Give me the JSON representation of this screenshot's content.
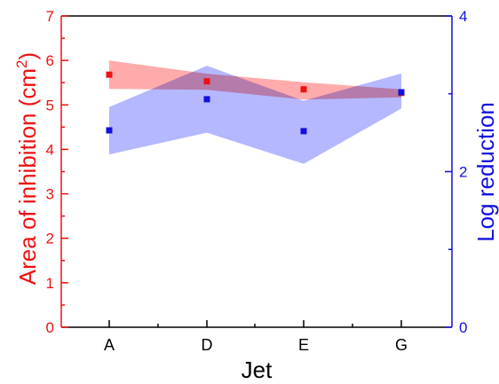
{
  "chart_data": {
    "type": "scatter",
    "categories": [
      "A",
      "D",
      "E",
      "G"
    ],
    "xlabel": "Jet",
    "ylabel_left": {
      "prefix": "Area of inhibition (cm",
      "sup": "2",
      "suffix": ")"
    },
    "ylabel_right": "Log reduction",
    "ylim_left": [
      0,
      7
    ],
    "yticks_left": [
      0,
      1,
      2,
      3,
      4,
      5,
      6,
      7
    ],
    "ylim_right": [
      0,
      4
    ],
    "yticks_right": [
      0,
      2,
      4
    ],
    "series": [
      {
        "axis": "left",
        "color": "#ee1111",
        "band_color": "#ff9c9c",
        "values": [
          5.68,
          5.53,
          5.35,
          5.27
        ],
        "band_upper": [
          6.0,
          5.7,
          5.51,
          5.35
        ],
        "band_lower": [
          5.36,
          5.34,
          5.12,
          5.17
        ]
      },
      {
        "axis": "right",
        "color": "#1111dd",
        "band_color": "#a8acff",
        "values": [
          2.53,
          2.93,
          2.52,
          3.02
        ],
        "band_upper": [
          2.83,
          3.36,
          2.91,
          3.26
        ],
        "band_lower": [
          2.22,
          2.5,
          2.1,
          2.81
        ]
      }
    ],
    "colors": {
      "left_axis": "#ee1111",
      "right_axis": "#1111dd",
      "frame": "#000000"
    },
    "grid": false,
    "legend": "none"
  }
}
